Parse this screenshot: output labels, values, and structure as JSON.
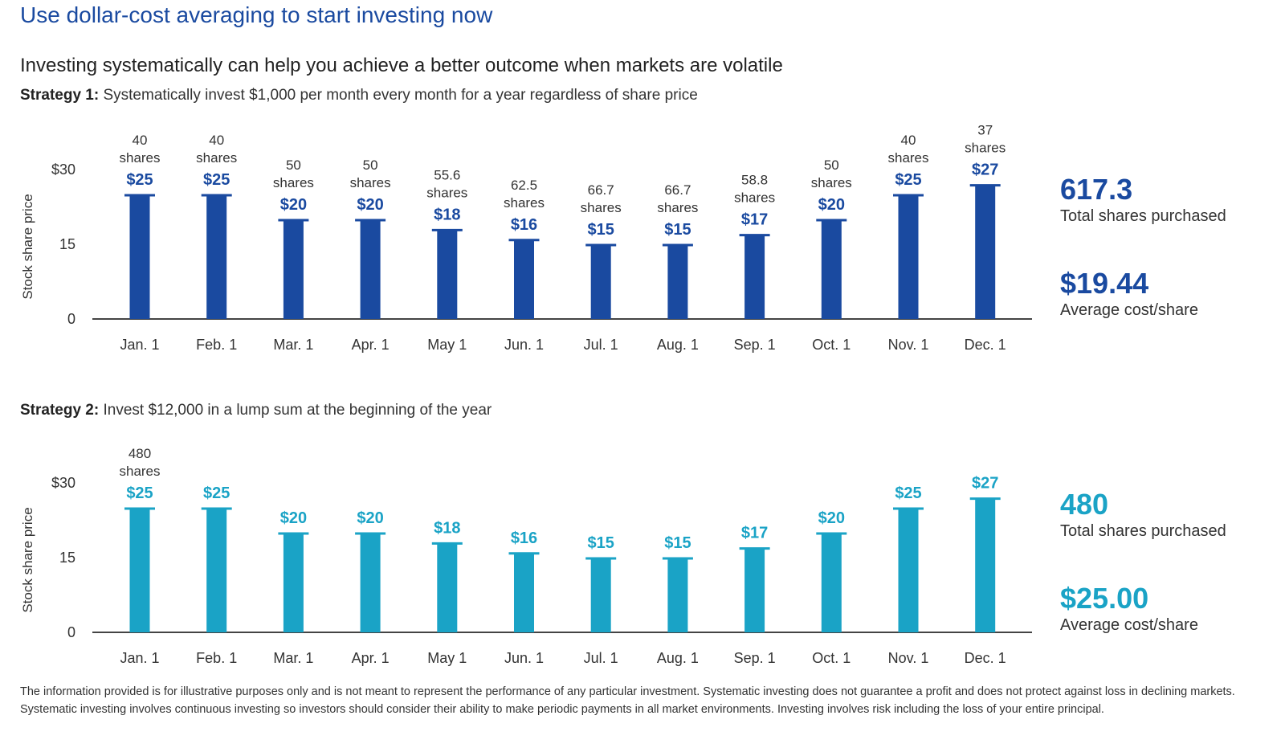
{
  "title": "Use dollar-cost averaging to start investing now",
  "subtitle": "Investing systematically can help you achieve a better outcome when markets are volatile",
  "strategy1": {
    "label": "Strategy 1:",
    "description": "Systematically invest $1,000 per month every month for a year regardless of share price",
    "total_shares": "617.3",
    "total_shares_label": "Total shares purchased",
    "avg_cost": "$19.44",
    "avg_cost_label": "Average cost/share"
  },
  "strategy2": {
    "label": "Strategy 2:",
    "description": "Invest $12,000 in a lump sum at the beginning of the year",
    "total_shares": "480",
    "total_shares_label": "Total shares purchased",
    "avg_cost": "$25.00",
    "avg_cost_label": "Average cost/share"
  },
  "footnote_line1": "The information provided is for illustrative purposes only and is not meant to represent the performance of any particular investment. Systematic investing does not guarantee a profit and does not protect against loss in declining markets.",
  "footnote_line2": "Systematic investing involves continuous investing so investors should consider their ability to make periodic payments in all market environments. Investing involves risk including the loss of your entire principal.",
  "colors": {
    "title": "#1a4aa0",
    "strategy1_bar": "#1a4aa0",
    "strategy2_bar": "#1aa3c6"
  },
  "chart_data": [
    {
      "type": "bar",
      "name": "strategy1",
      "categories": [
        "Jan. 1",
        "Feb. 1",
        "Mar. 1",
        "Apr. 1",
        "May 1",
        "Jun. 1",
        "Jul. 1",
        "Aug. 1",
        "Sep. 1",
        "Oct. 1",
        "Nov. 1",
        "Dec. 1"
      ],
      "values": [
        25,
        25,
        20,
        20,
        18,
        16,
        15,
        15,
        17,
        20,
        25,
        27
      ],
      "value_labels": [
        "$25",
        "$25",
        "$20",
        "$20",
        "$18",
        "$16",
        "$15",
        "$15",
        "$17",
        "$20",
        "$25",
        "$27"
      ],
      "share_counts": [
        "40",
        "40",
        "50",
        "50",
        "55.6",
        "62.5",
        "66.7",
        "66.7",
        "58.8",
        "50",
        "40",
        "37"
      ],
      "share_unit": "shares",
      "ylabel": "Stock share price",
      "yticks": [
        "0",
        "15",
        "$30"
      ],
      "ytick_values": [
        0,
        15,
        30
      ],
      "ylim": [
        0,
        30
      ],
      "grid": false,
      "color": "#1a4aa0"
    },
    {
      "type": "bar",
      "name": "strategy2",
      "categories": [
        "Jan. 1",
        "Feb. 1",
        "Mar. 1",
        "Apr. 1",
        "May 1",
        "Jun. 1",
        "Jul. 1",
        "Aug. 1",
        "Sep. 1",
        "Oct. 1",
        "Nov. 1",
        "Dec. 1"
      ],
      "values": [
        25,
        25,
        20,
        20,
        18,
        16,
        15,
        15,
        17,
        20,
        25,
        27
      ],
      "value_labels": [
        "$25",
        "$25",
        "$20",
        "$20",
        "$18",
        "$16",
        "$15",
        "$15",
        "$17",
        "$20",
        "$25",
        "$27"
      ],
      "share_counts": [
        "480",
        "",
        "",
        "",
        "",
        "",
        "",
        "",
        "",
        "",
        "",
        ""
      ],
      "share_unit": "shares",
      "ylabel": "Stock share price",
      "yticks": [
        "0",
        "15",
        "$30"
      ],
      "ytick_values": [
        0,
        15,
        30
      ],
      "ylim": [
        0,
        30
      ],
      "grid": false,
      "color": "#1aa3c6"
    }
  ]
}
